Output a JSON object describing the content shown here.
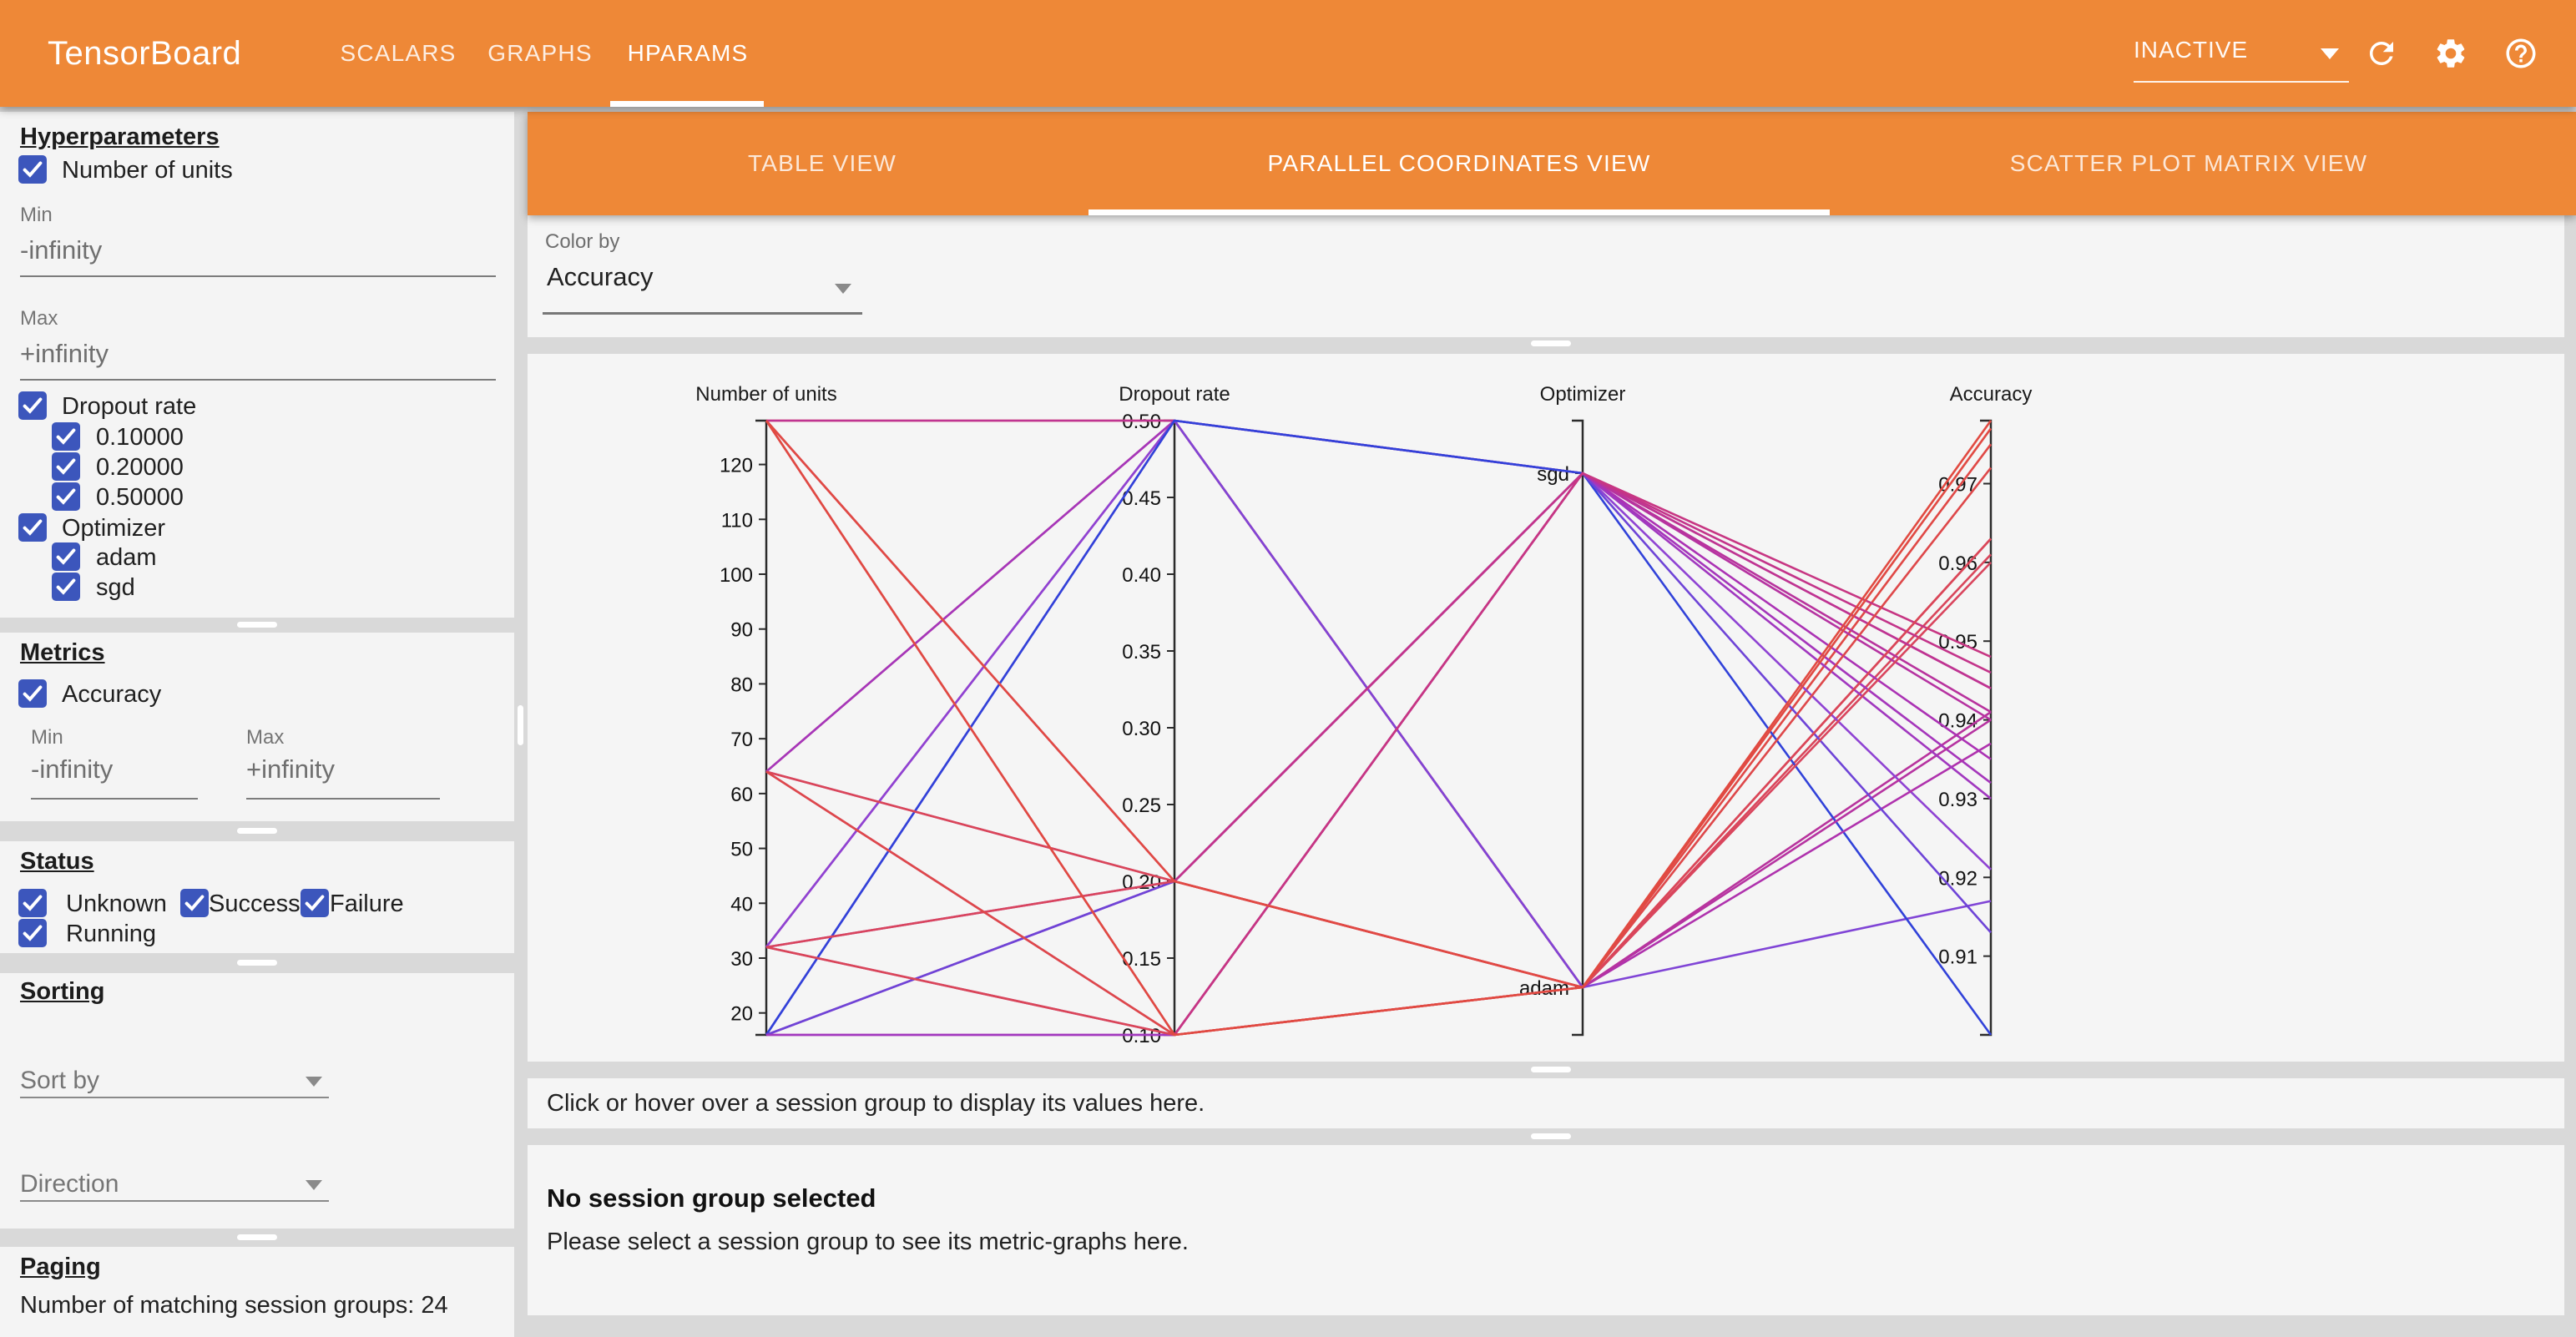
{
  "colors": {
    "header_orange": "#ee8837",
    "checkbox_blue": "#3c56bc",
    "panel_bg": "#f4f4f4",
    "page_bg": "#d9d9d9"
  },
  "header": {
    "title": "TensorBoard",
    "tabs": [
      {
        "label": "SCALARS",
        "active": false
      },
      {
        "label": "GRAPHS",
        "active": false
      },
      {
        "label": "HPARAMS",
        "active": true
      }
    ],
    "run_selector": {
      "value": "INACTIVE"
    }
  },
  "sidebar": {
    "hyperparameters": {
      "heading": "Hyperparameters",
      "number_of_units": {
        "label": "Number of units",
        "checked": true,
        "min_label": "Min",
        "min_value": "-infinity",
        "max_label": "Max",
        "max_value": "+infinity"
      },
      "dropout_rate": {
        "label": "Dropout rate",
        "checked": true,
        "values": [
          {
            "label": "0.10000",
            "checked": true
          },
          {
            "label": "0.20000",
            "checked": true
          },
          {
            "label": "0.50000",
            "checked": true
          }
        ]
      },
      "optimizer": {
        "label": "Optimizer",
        "checked": true,
        "values": [
          {
            "label": "adam",
            "checked": true
          },
          {
            "label": "sgd",
            "checked": true
          }
        ]
      }
    },
    "metrics": {
      "heading": "Metrics",
      "accuracy": {
        "label": "Accuracy",
        "checked": true
      },
      "min_label": "Min",
      "min_value": "-infinity",
      "max_label": "Max",
      "max_value": "+infinity"
    },
    "status": {
      "heading": "Status",
      "options": [
        {
          "label": "Unknown",
          "checked": true
        },
        {
          "label": "Success",
          "checked": true
        },
        {
          "label": "Failure",
          "checked": true
        },
        {
          "label": "Running",
          "checked": true
        }
      ]
    },
    "sorting": {
      "heading": "Sorting",
      "sort_by_placeholder": "Sort by",
      "direction_placeholder": "Direction"
    },
    "paging": {
      "heading": "Paging",
      "count_text": "Number of matching session groups: 24"
    }
  },
  "main": {
    "view_tabs": [
      {
        "label": "TABLE VIEW",
        "active": false
      },
      {
        "label": "PARALLEL COORDINATES VIEW",
        "active": true
      },
      {
        "label": "SCATTER PLOT MATRIX VIEW",
        "active": false
      }
    ],
    "color_by": {
      "label": "Color by",
      "value": "Accuracy"
    },
    "hint": "Click or hover over a session group to display its values here.",
    "details": {
      "title": "No session group selected",
      "message": "Please select a session group to see its metric-graphs here."
    }
  },
  "chart_data": {
    "type": "parallel_coordinates",
    "color_by": "Accuracy",
    "axes": [
      {
        "name": "Number of units",
        "type": "linear",
        "domain": [
          16,
          128
        ],
        "ticks": [
          [
            20,
            "20"
          ],
          [
            30,
            "30"
          ],
          [
            40,
            "40"
          ],
          [
            50,
            "50"
          ],
          [
            60,
            "60"
          ],
          [
            70,
            "70"
          ],
          [
            80,
            "80"
          ],
          [
            90,
            "90"
          ],
          [
            100,
            "100"
          ],
          [
            110,
            "110"
          ],
          [
            120,
            "120"
          ]
        ]
      },
      {
        "name": "Dropout rate",
        "type": "linear",
        "domain": [
          0.1,
          0.5
        ],
        "ticks": [
          [
            0.1,
            "0.10"
          ],
          [
            0.15,
            "0.15"
          ],
          [
            0.2,
            "0.20"
          ],
          [
            0.25,
            "0.25"
          ],
          [
            0.3,
            "0.30"
          ],
          [
            0.35,
            "0.35"
          ],
          [
            0.4,
            "0.40"
          ],
          [
            0.45,
            "0.45"
          ],
          [
            0.5,
            "0.50"
          ]
        ]
      },
      {
        "name": "Optimizer",
        "type": "categorical",
        "categories": [
          "sgd",
          "adam"
        ]
      },
      {
        "name": "Accuracy",
        "type": "linear",
        "domain": [
          0.9,
          0.978
        ],
        "ticks": [
          [
            0.91,
            "0.91"
          ],
          [
            0.92,
            "0.92"
          ],
          [
            0.93,
            "0.93"
          ],
          [
            0.94,
            "0.94"
          ],
          [
            0.95,
            "0.95"
          ],
          [
            0.96,
            "0.96"
          ],
          [
            0.97,
            "0.97"
          ]
        ]
      }
    ],
    "colormap_stops": [
      [
        0,
        "#3142d9"
      ],
      [
        0.25,
        "#8c45d6"
      ],
      [
        0.45,
        "#ab32b4"
      ],
      [
        0.6,
        "#c53487"
      ],
      [
        0.75,
        "#d8455f"
      ],
      [
        1,
        "#e14a41"
      ]
    ],
    "sessions": [
      {
        "units": 128,
        "dropout": 0.5,
        "optimizer": "adam",
        "accuracy": 0.975
      },
      {
        "units": 64,
        "dropout": 0.5,
        "optimizer": "adam",
        "accuracy": 0.961
      },
      {
        "units": 32,
        "dropout": 0.5,
        "optimizer": "adam",
        "accuracy": 0.941
      },
      {
        "units": 128,
        "dropout": 0.5,
        "optimizer": "sgd",
        "accuracy": 0.944
      },
      {
        "units": 64,
        "dropout": 0.5,
        "optimizer": "sgd",
        "accuracy": 0.932
      },
      {
        "units": 32,
        "dropout": 0.5,
        "optimizer": "sgd",
        "accuracy": 0.921
      },
      {
        "units": 16,
        "dropout": 0.5,
        "optimizer": "adam",
        "accuracy": 0.917
      },
      {
        "units": 16,
        "dropout": 0.5,
        "optimizer": "sgd",
        "accuracy": 0.9
      },
      {
        "units": 16,
        "dropout": 0.2,
        "optimizer": "adam",
        "accuracy": 0.937
      },
      {
        "units": 16,
        "dropout": 0.1,
        "optimizer": "adam",
        "accuracy": 0.94
      },
      {
        "units": 16,
        "dropout": 0.2,
        "optimizer": "sgd",
        "accuracy": 0.913
      },
      {
        "units": 16,
        "dropout": 0.1,
        "optimizer": "sgd",
        "accuracy": 0.93
      },
      {
        "units": 32,
        "dropout": 0.2,
        "optimizer": "sgd",
        "accuracy": 0.935
      },
      {
        "units": 32,
        "dropout": 0.1,
        "optimizer": "sgd",
        "accuracy": 0.94
      },
      {
        "units": 64,
        "dropout": 0.2,
        "optimizer": "sgd",
        "accuracy": 0.941
      },
      {
        "units": 64,
        "dropout": 0.1,
        "optimizer": "sgd",
        "accuracy": 0.944
      },
      {
        "units": 128,
        "dropout": 0.2,
        "optimizer": "sgd",
        "accuracy": 0.946
      },
      {
        "units": 128,
        "dropout": 0.1,
        "optimizer": "sgd",
        "accuracy": 0.948
      },
      {
        "units": 32,
        "dropout": 0.2,
        "optimizer": "adam",
        "accuracy": 0.96
      },
      {
        "units": 32,
        "dropout": 0.1,
        "optimizer": "adam",
        "accuracy": 0.963
      },
      {
        "units": 64,
        "dropout": 0.2,
        "optimizer": "adam",
        "accuracy": 0.963
      },
      {
        "units": 64,
        "dropout": 0.1,
        "optimizer": "adam",
        "accuracy": 0.972
      },
      {
        "units": 128,
        "dropout": 0.2,
        "optimizer": "adam",
        "accuracy": 0.977
      },
      {
        "units": 128,
        "dropout": 0.1,
        "optimizer": "adam",
        "accuracy": 0.978
      }
    ]
  }
}
